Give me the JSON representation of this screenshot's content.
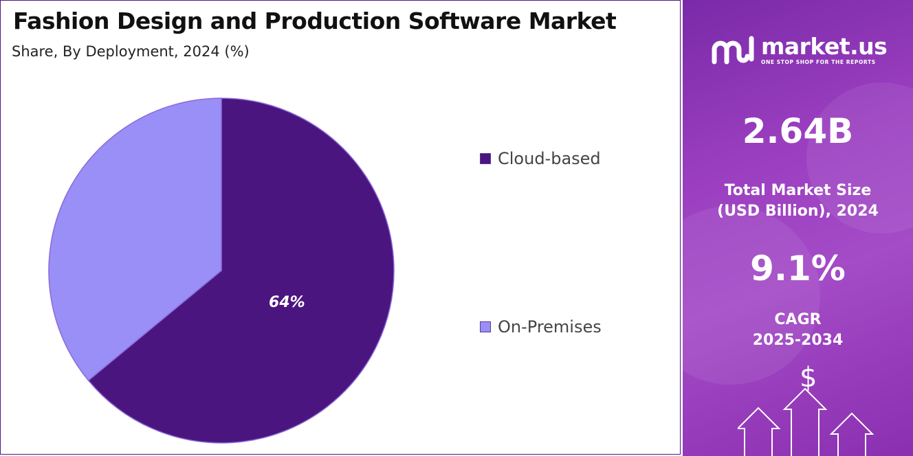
{
  "title": "Fashion Design and Production Software Market",
  "subtitle": "Share, By Deployment, 2024 (%)",
  "colors": {
    "cloud": "#4b1580",
    "on_premises": "#9a8ef7",
    "panel_purple": "#9b3fc0"
  },
  "chart_data": {
    "type": "pie",
    "title": "Fashion Design and Production Software Market",
    "subtitle": "Share, By Deployment, 2024 (%)",
    "categories": [
      "Cloud-based",
      "On-Premises"
    ],
    "values": [
      64,
      36
    ],
    "data_labels": [
      "64%",
      ""
    ],
    "colors": [
      "#4b1580",
      "#9a8ef7"
    ],
    "legend": [
      "Cloud-based",
      "On-Premises"
    ],
    "legend_position": "right"
  },
  "legend": {
    "items": [
      {
        "label": "Cloud-based",
        "color": "#4b1580"
      },
      {
        "label": "On-Premises",
        "color": "#9a8ef7"
      }
    ]
  },
  "sidebar": {
    "brand_name": "market.us",
    "brand_tagline": "ONE STOP SHOP FOR THE REPORTS",
    "market_size_value": "2.64B",
    "market_size_label_line1": "Total Market Size",
    "market_size_label_line2": "(USD Billion), 2024",
    "cagr_value": "9.1%",
    "cagr_label_line1": "CAGR",
    "cagr_label_line2": "2025-2034",
    "dollar_symbol": "$",
    "icons": [
      "market-us-logo-icon",
      "dollar-icon",
      "up-arrow-icon"
    ]
  }
}
